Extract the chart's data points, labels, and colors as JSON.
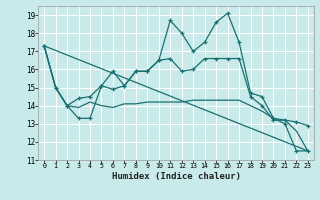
{
  "xlabel": "Humidex (Indice chaleur)",
  "background_color": "#c8eaea",
  "grid_color": "#ffffff",
  "line_color": "#1a7070",
  "xlim": [
    -0.5,
    23.5
  ],
  "ylim": [
    11.0,
    19.5
  ],
  "yticks": [
    11,
    12,
    13,
    14,
    15,
    16,
    17,
    18,
    19
  ],
  "xticks": [
    0,
    1,
    2,
    3,
    4,
    5,
    6,
    7,
    8,
    9,
    10,
    11,
    12,
    13,
    14,
    15,
    16,
    17,
    18,
    19,
    20,
    21,
    22,
    23
  ],
  "series1_x": [
    0,
    1,
    2,
    3,
    4,
    5,
    6,
    7,
    8,
    9,
    10,
    11,
    12,
    13,
    14,
    15,
    16,
    17,
    18,
    19,
    20,
    21,
    22,
    23
  ],
  "series1_y": [
    17.3,
    15.0,
    14.0,
    14.4,
    14.5,
    15.1,
    14.9,
    15.1,
    15.9,
    15.9,
    16.5,
    18.7,
    18.0,
    17.0,
    17.5,
    18.6,
    19.1,
    17.5,
    14.7,
    14.5,
    13.3,
    13.0,
    11.5,
    11.5
  ],
  "series2_x": [
    0,
    1,
    2,
    3,
    4,
    5,
    6,
    7,
    8,
    9,
    10,
    11,
    12,
    13,
    14,
    15,
    16,
    17,
    18,
    19,
    20,
    21,
    22,
    23
  ],
  "series2_y": [
    17.3,
    15.0,
    14.0,
    13.3,
    13.3,
    15.1,
    15.9,
    15.1,
    15.9,
    15.9,
    16.5,
    16.6,
    15.9,
    16.0,
    16.6,
    16.6,
    16.6,
    16.6,
    14.5,
    14.0,
    13.2,
    13.2,
    13.1,
    12.9
  ],
  "series3_x": [
    0,
    1,
    2,
    3,
    4,
    5,
    6,
    7,
    8,
    9,
    10,
    11,
    12,
    13,
    14,
    15,
    16,
    17,
    18,
    19,
    20,
    21,
    22,
    23
  ],
  "series3_y": [
    17.3,
    15.0,
    14.0,
    13.9,
    14.2,
    14.0,
    13.9,
    14.1,
    14.1,
    14.2,
    14.2,
    14.2,
    14.2,
    14.3,
    14.3,
    14.3,
    14.3,
    14.3,
    14.0,
    13.7,
    13.3,
    13.2,
    12.6,
    11.5
  ],
  "series4_x": [
    0,
    23
  ],
  "series4_y": [
    17.3,
    11.5
  ]
}
